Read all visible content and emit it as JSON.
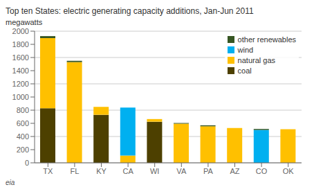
{
  "chart_data": {
    "type": "bar",
    "stacked": true,
    "title": "Top ten States: electric generating capacity additions, Jan-Jun 2011",
    "y_label": "megawatts",
    "annotations": [
      "eia"
    ],
    "categories": [
      "TX",
      "FL",
      "KY",
      "CA",
      "WI",
      "VA",
      "PA",
      "AZ",
      "CO",
      "OK"
    ],
    "series": [
      {
        "name": "coal",
        "color": "#4d4000",
        "values": [
          830,
          0,
          730,
          0,
          625,
          0,
          0,
          0,
          0,
          0
        ]
      },
      {
        "name": "natural gas",
        "color": "#ffc000",
        "values": [
          1065,
          1530,
          120,
          110,
          40,
          595,
          555,
          530,
          0,
          510
        ]
      },
      {
        "name": "wind",
        "color": "#00b0f0",
        "values": [
          0,
          0,
          0,
          730,
          0,
          0,
          0,
          0,
          500,
          0
        ]
      },
      {
        "name": "other renewables",
        "color": "#375623",
        "values": [
          30,
          20,
          0,
          0,
          0,
          10,
          15,
          0,
          15,
          0
        ]
      }
    ],
    "ylim": [
      0,
      2000
    ],
    "yticks": [
      0,
      200,
      400,
      600,
      800,
      1000,
      1200,
      1400,
      1600,
      1800,
      2000
    ],
    "grid": true,
    "legend": "upper right"
  }
}
